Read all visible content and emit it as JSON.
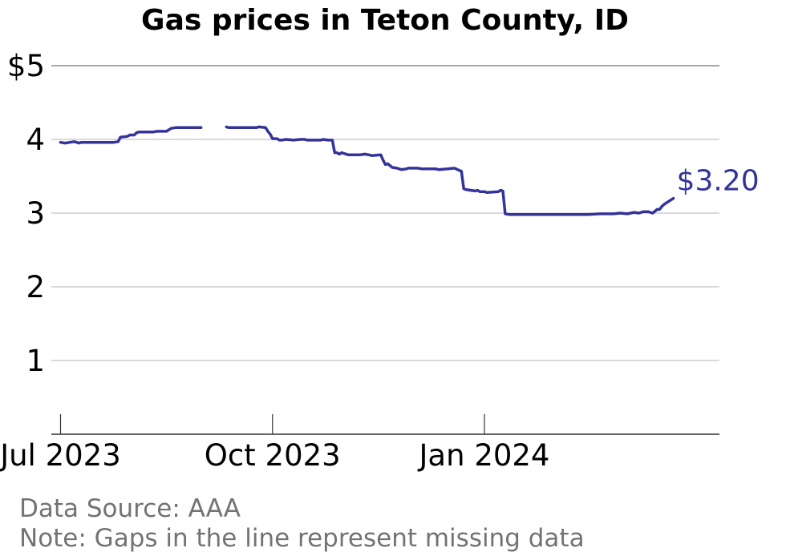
{
  "chart_data": {
    "type": "line",
    "title": "Gas prices in Teton County, ID",
    "xlabel": "",
    "ylabel": "",
    "ylim": [
      0,
      5
    ],
    "xlim": [
      "2023-06-27",
      "2024-04-12"
    ],
    "y_ticks": [
      {
        "value": 1,
        "label": "1"
      },
      {
        "value": 2,
        "label": "2"
      },
      {
        "value": 3,
        "label": "3"
      },
      {
        "value": 4,
        "label": "4"
      },
      {
        "value": 5,
        "label": "$5"
      }
    ],
    "x_ticks": [
      {
        "date": "2023-07-01",
        "label": "Jul 2023"
      },
      {
        "date": "2023-10-01",
        "label": "Oct 2023"
      },
      {
        "date": "2024-01-01",
        "label": "Jan 2024"
      }
    ],
    "grid": "horizontal",
    "legend": "none",
    "line_color": "#33339b",
    "end_label": "$3.20",
    "series": [
      {
        "segments": [
          [
            [
              "2023-07-01",
              3.96
            ],
            [
              "2023-07-03",
              3.95
            ],
            [
              "2023-07-05",
              3.96
            ],
            [
              "2023-07-07",
              3.97
            ],
            [
              "2023-07-08",
              3.96
            ],
            [
              "2023-07-09",
              3.95
            ],
            [
              "2023-07-10",
              3.96
            ],
            [
              "2023-07-20",
              3.96
            ],
            [
              "2023-07-24",
              3.96
            ],
            [
              "2023-07-26",
              3.97
            ],
            [
              "2023-07-27",
              4.03
            ],
            [
              "2023-07-30",
              4.04
            ],
            [
              "2023-07-31",
              4.06
            ],
            [
              "2023-08-02",
              4.06
            ],
            [
              "2023-08-03",
              4.09
            ],
            [
              "2023-08-04",
              4.1
            ],
            [
              "2023-08-10",
              4.1
            ],
            [
              "2023-08-12",
              4.11
            ],
            [
              "2023-08-16",
              4.11
            ],
            [
              "2023-08-18",
              4.15
            ],
            [
              "2023-08-20",
              4.16
            ],
            [
              "2023-08-26",
              4.16
            ],
            [
              "2023-08-31",
              4.16
            ]
          ],
          [
            [
              "2023-09-11",
              4.17
            ],
            [
              "2023-09-12",
              4.16
            ],
            [
              "2023-09-24",
              4.16
            ],
            [
              "2023-09-25",
              4.17
            ],
            [
              "2023-09-28",
              4.16
            ],
            [
              "2023-09-29",
              4.11
            ],
            [
              "2023-09-30",
              4.07
            ],
            [
              "2023-10-01",
              4.01
            ],
            [
              "2023-10-03",
              4.01
            ],
            [
              "2023-10-04",
              3.99
            ],
            [
              "2023-10-05",
              3.99
            ],
            [
              "2023-10-07",
              4.0
            ],
            [
              "2023-10-10",
              3.99
            ],
            [
              "2023-10-13",
              4.0
            ],
            [
              "2023-10-15",
              4.0
            ],
            [
              "2023-10-16",
              3.99
            ],
            [
              "2023-10-22",
              3.99
            ],
            [
              "2023-10-23",
              4.0
            ],
            [
              "2023-10-25",
              3.99
            ],
            [
              "2023-10-27",
              3.99
            ],
            [
              "2023-10-28",
              3.82
            ],
            [
              "2023-10-29",
              3.82
            ],
            [
              "2023-10-30",
              3.8
            ],
            [
              "2023-10-31",
              3.82
            ],
            [
              "2023-11-01",
              3.81
            ],
            [
              "2023-11-02",
              3.8
            ],
            [
              "2023-11-03",
              3.79
            ],
            [
              "2023-11-08",
              3.79
            ],
            [
              "2023-11-10",
              3.8
            ],
            [
              "2023-11-12",
              3.79
            ],
            [
              "2023-11-13",
              3.78
            ],
            [
              "2023-11-17",
              3.79
            ],
            [
              "2023-11-18",
              3.72
            ],
            [
              "2023-11-19",
              3.66
            ],
            [
              "2023-11-20",
              3.67
            ],
            [
              "2023-11-22",
              3.62
            ],
            [
              "2023-11-24",
              3.61
            ],
            [
              "2023-11-26",
              3.59
            ],
            [
              "2023-11-28",
              3.6
            ],
            [
              "2023-11-29",
              3.61
            ],
            [
              "2023-12-03",
              3.61
            ],
            [
              "2023-12-05",
              3.6
            ],
            [
              "2023-12-08",
              3.6
            ],
            [
              "2023-12-09",
              3.6
            ],
            [
              "2023-12-11",
              3.6
            ],
            [
              "2023-12-12",
              3.59
            ],
            [
              "2023-12-16",
              3.6
            ],
            [
              "2023-12-19",
              3.61
            ],
            [
              "2023-12-21",
              3.58
            ],
            [
              "2023-12-22",
              3.57
            ],
            [
              "2023-12-23",
              3.33
            ],
            [
              "2023-12-24",
              3.32
            ],
            [
              "2023-12-26",
              3.31
            ],
            [
              "2023-12-28",
              3.3
            ],
            [
              "2023-12-29",
              3.31
            ],
            [
              "2023-12-30",
              3.29
            ],
            [
              "2024-01-01",
              3.29
            ],
            [
              "2024-01-02",
              3.28
            ],
            [
              "2024-01-07",
              3.29
            ],
            [
              "2024-01-08",
              3.31
            ],
            [
              "2024-01-09",
              3.3
            ],
            [
              "2024-01-10",
              2.99
            ],
            [
              "2024-01-12",
              2.98
            ],
            [
              "2024-01-14",
              2.98
            ],
            [
              "2024-01-15",
              2.98
            ],
            [
              "2024-01-18",
              2.98
            ],
            [
              "2024-01-30",
              2.98
            ],
            [
              "2024-02-05",
              2.98
            ],
            [
              "2024-02-15",
              2.98
            ],
            [
              "2024-02-20",
              2.99
            ],
            [
              "2024-02-26",
              2.99
            ],
            [
              "2024-02-29",
              3.0
            ],
            [
              "2024-03-03",
              2.99
            ],
            [
              "2024-03-06",
              3.01
            ],
            [
              "2024-03-08",
              3.0
            ],
            [
              "2024-03-10",
              3.02
            ],
            [
              "2024-03-12",
              3.02
            ],
            [
              "2024-03-14",
              3.0
            ],
            [
              "2024-03-16",
              3.05
            ],
            [
              "2024-03-17",
              3.05
            ],
            [
              "2024-03-18",
              3.09
            ],
            [
              "2024-03-19",
              3.12
            ],
            [
              "2024-03-21",
              3.16
            ],
            [
              "2024-03-23",
              3.2
            ]
          ]
        ]
      }
    ]
  },
  "footer": {
    "source": "Data Source: AAA",
    "note": "Note: Gaps in the line represent missing data"
  }
}
